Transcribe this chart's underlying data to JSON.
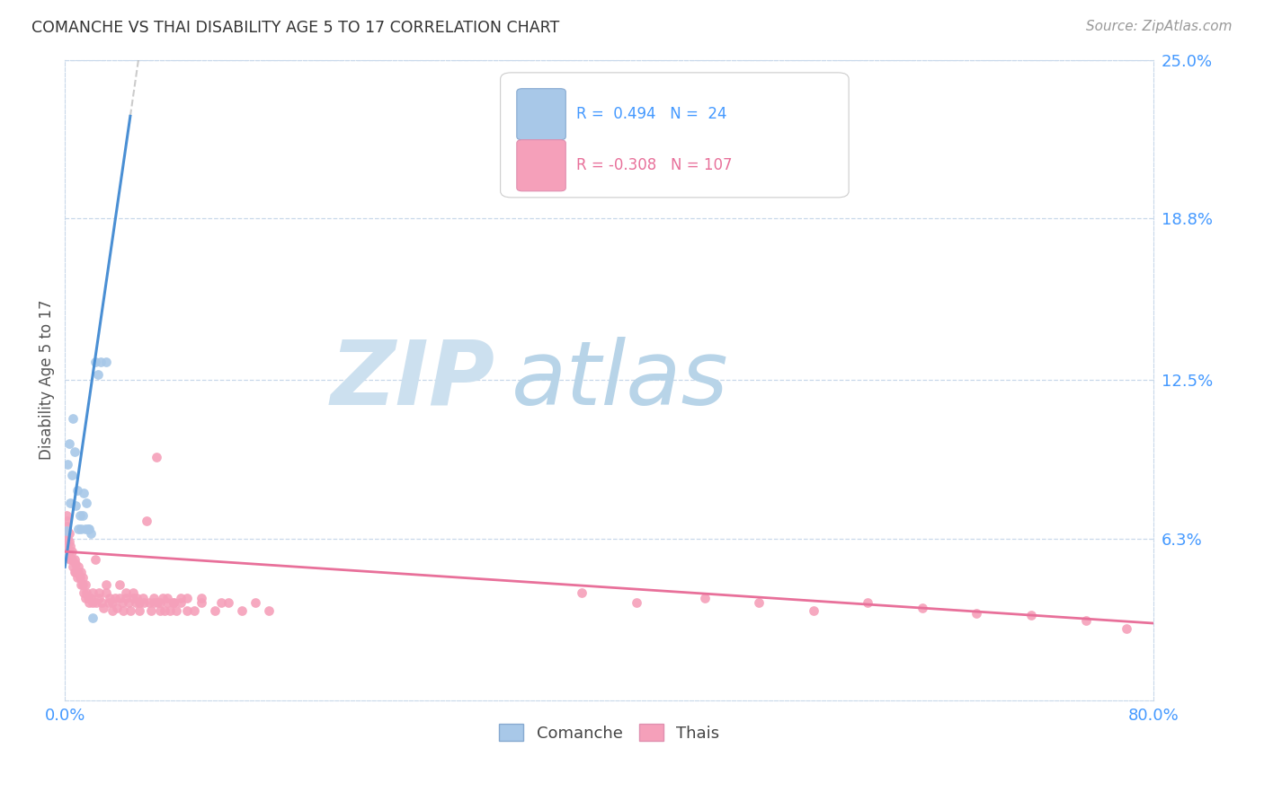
{
  "title": "COMANCHE VS THAI DISABILITY AGE 5 TO 17 CORRELATION CHART",
  "source": "Source: ZipAtlas.com",
  "ylabel": "Disability Age 5 to 17",
  "xlim": [
    0.0,
    0.8
  ],
  "ylim": [
    0.0,
    0.25
  ],
  "comanche_color": "#a8c8e8",
  "thais_color": "#f5a0ba",
  "line_comanche_color": "#4a8fd4",
  "line_thais_color": "#e8709a",
  "comanche_x": [
    0.001,
    0.002,
    0.003,
    0.004,
    0.005,
    0.006,
    0.007,
    0.008,
    0.009,
    0.01,
    0.011,
    0.012,
    0.013,
    0.014,
    0.015,
    0.016,
    0.017,
    0.018,
    0.019,
    0.02,
    0.022,
    0.024,
    0.026,
    0.03
  ],
  "comanche_y": [
    0.066,
    0.092,
    0.1,
    0.077,
    0.088,
    0.11,
    0.097,
    0.076,
    0.082,
    0.067,
    0.072,
    0.067,
    0.072,
    0.081,
    0.067,
    0.077,
    0.067,
    0.067,
    0.065,
    0.032,
    0.132,
    0.127,
    0.132,
    0.132
  ],
  "thais_x": [
    0.001,
    0.001,
    0.001,
    0.001,
    0.002,
    0.002,
    0.002,
    0.003,
    0.003,
    0.003,
    0.004,
    0.004,
    0.005,
    0.005,
    0.006,
    0.007,
    0.007,
    0.008,
    0.008,
    0.009,
    0.01,
    0.01,
    0.011,
    0.012,
    0.012,
    0.013,
    0.013,
    0.014,
    0.015,
    0.015,
    0.016,
    0.017,
    0.018,
    0.019,
    0.02,
    0.02,
    0.022,
    0.023,
    0.025,
    0.025,
    0.027,
    0.028,
    0.03,
    0.03,
    0.032,
    0.033,
    0.035,
    0.035,
    0.037,
    0.038,
    0.04,
    0.04,
    0.042,
    0.043,
    0.045,
    0.045,
    0.047,
    0.048,
    0.05,
    0.05,
    0.052,
    0.053,
    0.055,
    0.055,
    0.057,
    0.058,
    0.06,
    0.062,
    0.063,
    0.065,
    0.065,
    0.067,
    0.068,
    0.07,
    0.07,
    0.072,
    0.073,
    0.075,
    0.075,
    0.077,
    0.08,
    0.08,
    0.082,
    0.085,
    0.085,
    0.09,
    0.09,
    0.095,
    0.1,
    0.1,
    0.11,
    0.115,
    0.12,
    0.13,
    0.14,
    0.15,
    0.38,
    0.42,
    0.47,
    0.51,
    0.55,
    0.59,
    0.63,
    0.67,
    0.71,
    0.75,
    0.78
  ],
  "thais_y": [
    0.065,
    0.068,
    0.07,
    0.072,
    0.06,
    0.063,
    0.066,
    0.058,
    0.062,
    0.065,
    0.055,
    0.06,
    0.055,
    0.058,
    0.052,
    0.05,
    0.055,
    0.05,
    0.053,
    0.048,
    0.05,
    0.052,
    0.048,
    0.045,
    0.05,
    0.045,
    0.048,
    0.042,
    0.04,
    0.045,
    0.042,
    0.04,
    0.038,
    0.04,
    0.038,
    0.042,
    0.055,
    0.038,
    0.04,
    0.042,
    0.038,
    0.036,
    0.042,
    0.045,
    0.038,
    0.04,
    0.035,
    0.038,
    0.04,
    0.036,
    0.045,
    0.04,
    0.038,
    0.035,
    0.04,
    0.042,
    0.038,
    0.035,
    0.04,
    0.042,
    0.038,
    0.04,
    0.035,
    0.038,
    0.04,
    0.038,
    0.07,
    0.038,
    0.035,
    0.038,
    0.04,
    0.095,
    0.038,
    0.035,
    0.038,
    0.04,
    0.035,
    0.038,
    0.04,
    0.035,
    0.038,
    0.038,
    0.035,
    0.04,
    0.038,
    0.035,
    0.04,
    0.035,
    0.038,
    0.04,
    0.035,
    0.038,
    0.038,
    0.035,
    0.038,
    0.035,
    0.042,
    0.038,
    0.04,
    0.038,
    0.035,
    0.038,
    0.036,
    0.034,
    0.033,
    0.031,
    0.028
  ],
  "line_c_x0": 0.0,
  "line_c_y0": 0.052,
  "line_c_x1": 0.048,
  "line_c_y1": 0.228,
  "line_c_dash_x0": 0.048,
  "line_c_dash_x1": 0.8,
  "line_t_x0": 0.0,
  "line_t_y0": 0.058,
  "line_t_x1": 0.8,
  "line_t_y1": 0.03,
  "grid_color": "#c8d8ea",
  "ytick_vals": [
    0.063,
    0.125,
    0.188,
    0.25
  ],
  "ytick_labels": [
    "6.3%",
    "12.5%",
    "18.8%",
    "25.0%"
  ],
  "xtick_vals": [
    0.0,
    0.8
  ],
  "xtick_labels": [
    "0.0%",
    "80.0%"
  ],
  "tick_color": "#4499ff",
  "title_color": "#333333",
  "source_color": "#999999",
  "ylabel_color": "#555555",
  "watermark_zip_color": "#cce0ef",
  "watermark_atlas_color": "#b8d4e8"
}
